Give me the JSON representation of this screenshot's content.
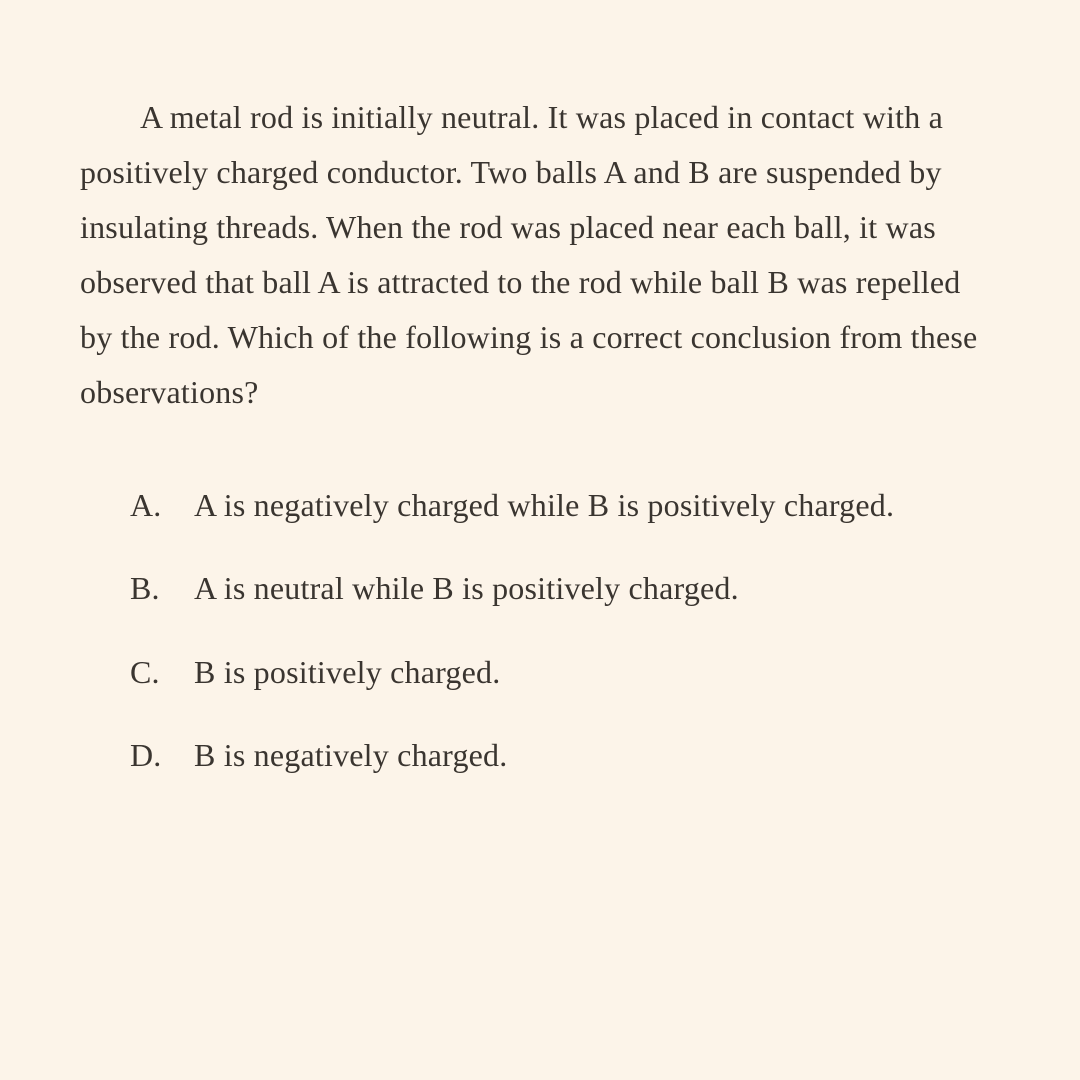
{
  "background_color": "#fcf4e9",
  "text_color": "#3a3530",
  "font_family": "Georgia, 'Times New Roman', serif",
  "question": {
    "text": "A metal rod is initially neutral. It was placed in contact with a positively charged conductor. Two balls A and B are suspended by insulating threads. When the rod was placed near each ball, it was observed that ball A is attracted to the rod while ball B was repelled by the rod. Which of the following is a correct conclusion from these observations?",
    "fontsize": 32,
    "line_height": 1.72,
    "text_indent": 60
  },
  "options": [
    {
      "letter": "A.",
      "text": "A is negatively charged while B is positively charged."
    },
    {
      "letter": "B.",
      "text": "A is neutral while B is positively charged."
    },
    {
      "letter": "C.",
      "text": "B is positively charged."
    },
    {
      "letter": "D.",
      "text": "B is negatively charged."
    }
  ],
  "option_fontsize": 32,
  "option_line_height": 1.6,
  "option_spacing": 32
}
